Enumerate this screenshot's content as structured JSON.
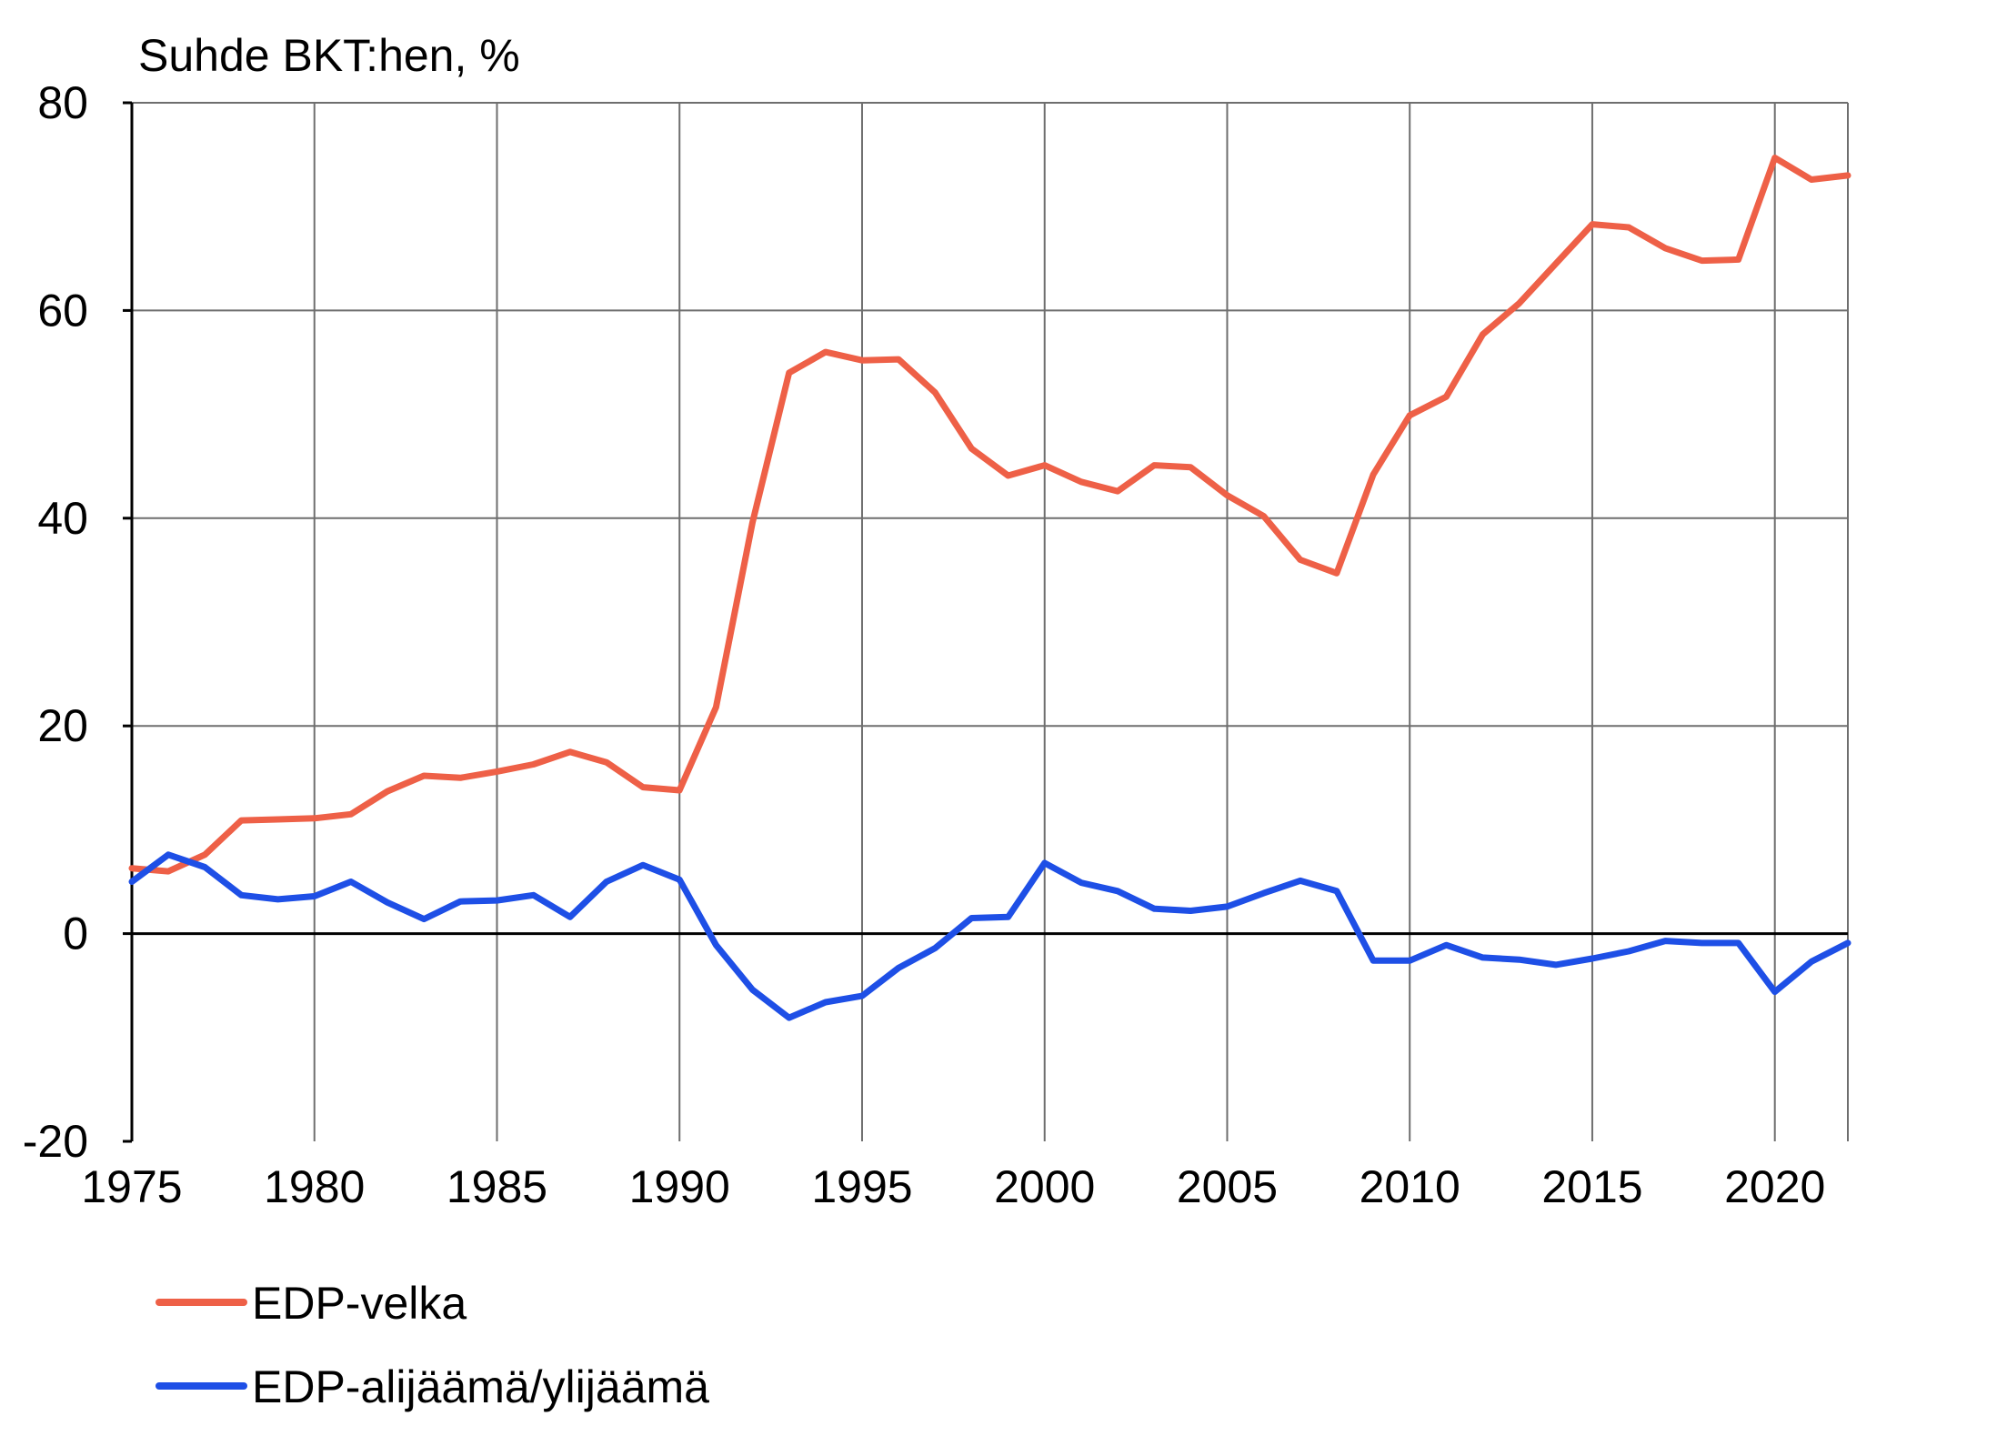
{
  "chart_data": {
    "type": "line",
    "ylabel": "Suhde BKT:hen, %",
    "xlim": [
      1975,
      2022
    ],
    "ylim": [
      -20,
      80
    ],
    "x_ticks": [
      "1975",
      "1980",
      "1985",
      "1990",
      "1995",
      "2000",
      "2005",
      "2010",
      "2015",
      "2020"
    ],
    "y_ticks": [
      "80",
      "60",
      "40",
      "20",
      "0",
      "-20"
    ],
    "grid": true,
    "legend_position": "bottom-left",
    "x": [
      1975,
      1976,
      1977,
      1978,
      1979,
      1980,
      1981,
      1982,
      1983,
      1984,
      1985,
      1986,
      1987,
      1988,
      1989,
      1990,
      1991,
      1992,
      1993,
      1994,
      1995,
      1996,
      1997,
      1998,
      1999,
      2000,
      2001,
      2002,
      2003,
      2004,
      2005,
      2006,
      2007,
      2008,
      2009,
      2010,
      2011,
      2012,
      2013,
      2014,
      2015,
      2016,
      2017,
      2018,
      2019,
      2020,
      2021,
      2022
    ],
    "series": [
      {
        "name": "EDP-velka",
        "color": "#ee6047",
        "values": [
          6.3,
          6.0,
          7.6,
          10.9,
          11.0,
          11.1,
          11.5,
          13.7,
          15.2,
          15.0,
          15.6,
          16.3,
          17.5,
          16.5,
          14.1,
          13.8,
          21.8,
          39.6,
          54.0,
          56.0,
          55.2,
          55.3,
          52.1,
          46.7,
          44.1,
          45.1,
          43.5,
          42.6,
          45.1,
          44.9,
          42.2,
          40.2,
          36.0,
          34.7,
          44.2,
          49.9,
          51.7,
          57.7,
          60.7,
          64.5,
          68.3,
          68.0,
          66.0,
          64.8,
          64.9,
          74.7,
          72.6,
          73.0
        ]
      },
      {
        "name": "EDP-alijäämä/ylijäämä",
        "color": "#1e4fe6",
        "values": [
          5.0,
          7.6,
          6.4,
          3.7,
          3.3,
          3.6,
          5.0,
          3.0,
          1.4,
          3.1,
          3.2,
          3.7,
          1.6,
          5.0,
          6.6,
          5.2,
          -1.1,
          -5.4,
          -8.1,
          -6.6,
          -6.0,
          -3.3,
          -1.4,
          1.5,
          1.6,
          6.8,
          4.9,
          4.1,
          2.4,
          2.2,
          2.6,
          3.9,
          5.1,
          4.1,
          -2.6,
          -2.6,
          -1.1,
          -2.3,
          -2.5,
          -3.0,
          -2.4,
          -1.7,
          -0.7,
          -0.9,
          -0.9,
          -5.6,
          -2.7,
          -0.9
        ]
      }
    ]
  }
}
